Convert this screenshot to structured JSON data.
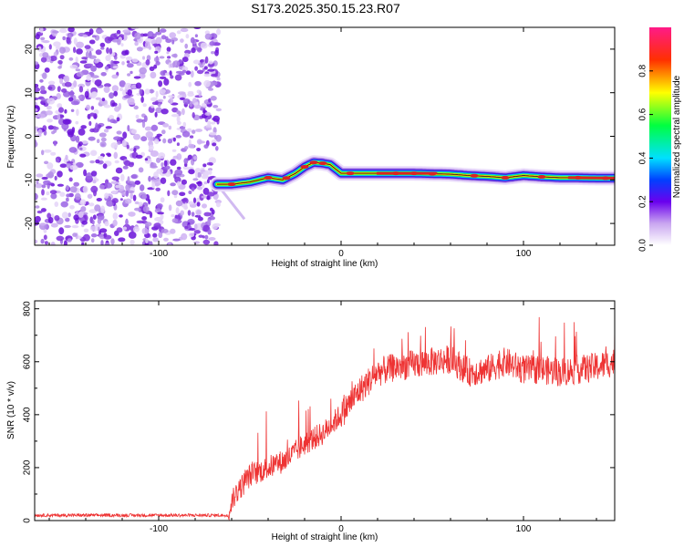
{
  "title": "S173.2025.350.15.23.R07",
  "chart_data": [
    {
      "type": "heatmap",
      "xlabel": "Height of straight line (km)",
      "ylabel": "Frequency (Hz)",
      "xlim": [
        -168,
        150
      ],
      "ylim": [
        -25,
        25
      ],
      "xticks": [
        -100,
        0,
        100
      ],
      "yticks": [
        -20,
        -10,
        0,
        10,
        20
      ],
      "noise_region_x": [
        -168,
        -67
      ],
      "ridge": {
        "x": [
          -68,
          -60,
          -50,
          -40,
          -32,
          -25,
          -20,
          -15,
          -10,
          -6,
          -3,
          0,
          10,
          20,
          40,
          60,
          70,
          80,
          90,
          100,
          110,
          120,
          130,
          140,
          150
        ],
        "y": [
          -11,
          -11,
          -10.5,
          -9.5,
          -10,
          -8.5,
          -7,
          -6,
          -6.2,
          -6.5,
          -7.5,
          -8.5,
          -8.5,
          -8.5,
          -8.5,
          -8.7,
          -9,
          -9.2,
          -9.5,
          -9,
          -9.3,
          -9.5,
          -9.5,
          -9.6,
          -9.6
        ]
      },
      "peak_x": [
        -60,
        -40,
        -30,
        -20,
        -15,
        -10,
        5,
        30,
        40,
        50,
        73,
        90,
        110,
        130,
        145
      ],
      "colorbar": {
        "label": "Normalized spectral amplitude",
        "ticks": [
          0.0,
          0.2,
          0.4,
          0.6,
          0.8
        ],
        "tick_labels": [
          "0.0",
          "0.2",
          "0.4",
          "0.6",
          "0.8"
        ],
        "range": [
          0,
          1
        ]
      }
    },
    {
      "type": "line",
      "xlabel": "Height of straight line (km)",
      "ylabel": "SNR (10 * v/v)",
      "xlim": [
        -168,
        150
      ],
      "ylim": [
        0,
        830
      ],
      "xticks": [
        -100,
        0,
        100
      ],
      "yticks": [
        0,
        200,
        400,
        600,
        800
      ],
      "series": [
        {
          "name": "SNR",
          "color": "#ee3333",
          "envelope_x": [
            -168,
            -62,
            -58,
            -50,
            -40,
            -30,
            -20,
            -10,
            0,
            10,
            20,
            30,
            40,
            50,
            60,
            70,
            80,
            90,
            100,
            110,
            120,
            130,
            140,
            150
          ],
          "envelope_y": [
            20,
            20,
            100,
            170,
            200,
            230,
            290,
            330,
            400,
            490,
            560,
            580,
            590,
            600,
            610,
            560,
            570,
            600,
            570,
            570,
            560,
            570,
            580,
            600
          ]
        }
      ]
    }
  ],
  "colors": {
    "snr_line": "#ee3333",
    "ridge_core": "#dd2222",
    "noise": "#8833dd"
  }
}
